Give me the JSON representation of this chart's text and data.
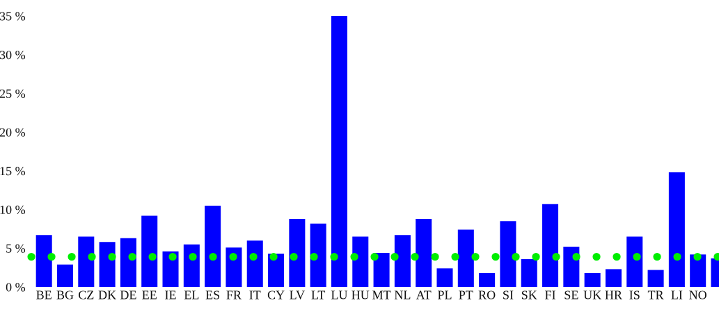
{
  "chart_data": {
    "type": "bar",
    "categories": [
      "BE",
      "BG",
      "CZ",
      "DK",
      "DE",
      "EE",
      "IE",
      "EL",
      "ES",
      "FR",
      "IT",
      "CY",
      "LV",
      "LT",
      "LU",
      "HU",
      "MT",
      "NL",
      "AT",
      "PL",
      "PT",
      "RO",
      "SI",
      "SK",
      "FI",
      "SE",
      "UK",
      "HR",
      "IS",
      "TR",
      "LI",
      "NO",
      null
    ],
    "values": [
      6.7,
      2.9,
      6.5,
      5.8,
      6.3,
      9.2,
      4.6,
      5.5,
      10.5,
      5.1,
      6.0,
      4.3,
      8.8,
      8.2,
      35,
      6.5,
      4.4,
      6.7,
      8.8,
      2.4,
      7.4,
      1.8,
      8.5,
      3.6,
      10.7,
      5.2,
      1.8,
      2.3,
      6.5,
      2.2,
      14.8,
      4.2,
      3.7
    ],
    "color": "#0000ff",
    "ylim": [
      0,
      35
    ],
    "yticks": [
      {
        "value": 0,
        "label": "0 %"
      },
      {
        "value": 5,
        "label": "5 %"
      },
      {
        "value": 10,
        "label": "10 %"
      },
      {
        "value": 15,
        "label": "15 %"
      },
      {
        "value": 20,
        "label": "20 %"
      },
      {
        "value": 25,
        "label": "25 %"
      },
      {
        "value": 30,
        "label": "30 %"
      },
      {
        "value": 35,
        "label": "35 %"
      }
    ],
    "ref_lines": [
      {
        "axis": "y",
        "value": 3.9,
        "color": "#00ee00",
        "line_style": "dotted"
      }
    ],
    "grid": false,
    "legend": false
  }
}
